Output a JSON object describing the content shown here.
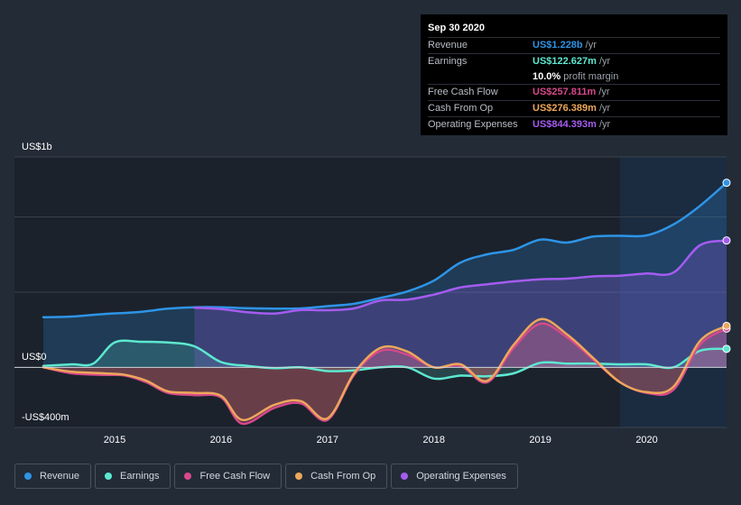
{
  "chart_data": {
    "type": "area",
    "y_axis_labels": [
      "US$1b",
      "US$0",
      "-US$400m"
    ],
    "ylim": [
      -400,
      1400
    ],
    "xlim": [
      2014.33,
      2020.75
    ],
    "x_tick_labels": [
      "2015",
      "2016",
      "2017",
      "2018",
      "2019",
      "2020"
    ],
    "x_ticks": [
      2015,
      2016,
      2017,
      2018,
      2019,
      2020
    ],
    "units": "US$m",
    "highlight_start": 2019.75,
    "series": [
      {
        "name": "Revenue",
        "color": "#2e94e6",
        "x": [
          2014.33,
          2014.6,
          2014.9,
          2015.2,
          2015.5,
          2015.75,
          2016.0,
          2016.25,
          2016.5,
          2016.75,
          2017.0,
          2017.25,
          2017.5,
          2017.75,
          2018.0,
          2018.25,
          2018.5,
          2018.75,
          2019.0,
          2019.25,
          2019.5,
          2019.75,
          2020.0,
          2020.25,
          2020.5,
          2020.75
        ],
        "values": [
          333,
          338,
          355,
          366,
          390,
          400,
          400,
          393,
          391,
          392,
          407,
          423,
          462,
          505,
          577,
          697,
          752,
          782,
          850,
          830,
          870,
          875,
          878,
          950,
          1074,
          1228
        ]
      },
      {
        "name": "Earnings",
        "color": "#5de8d0",
        "x": [
          2014.33,
          2014.6,
          2014.8,
          2015.0,
          2015.25,
          2015.5,
          2015.75,
          2016.0,
          2016.25,
          2016.5,
          2016.75,
          2017.0,
          2017.25,
          2017.5,
          2017.75,
          2018.0,
          2018.25,
          2018.5,
          2018.75,
          2019.0,
          2019.25,
          2019.5,
          2019.75,
          2020.0,
          2020.25,
          2020.5,
          2020.75
        ],
        "values": [
          10,
          20,
          25,
          165,
          170,
          165,
          140,
          35,
          10,
          -5,
          0,
          -25,
          -20,
          0,
          0,
          -75,
          -55,
          -60,
          -40,
          30,
          25,
          25,
          20,
          20,
          0,
          110,
          123
        ]
      },
      {
        "name": "Free Cash Flow",
        "color": "#d6498b",
        "x": [
          2014.33,
          2014.6,
          2014.9,
          2015.1,
          2015.3,
          2015.5,
          2015.75,
          2016.0,
          2016.2,
          2016.5,
          2016.75,
          2017.0,
          2017.25,
          2017.5,
          2017.75,
          2018.0,
          2018.25,
          2018.5,
          2018.75,
          2019.0,
          2019.25,
          2019.5,
          2019.75,
          2020.0,
          2020.25,
          2020.5,
          2020.75
        ],
        "values": [
          0,
          -40,
          -50,
          -55,
          -100,
          -170,
          -185,
          -200,
          -375,
          -270,
          -240,
          -350,
          -50,
          110,
          85,
          0,
          10,
          -100,
          130,
          290,
          200,
          50,
          -100,
          -170,
          -150,
          150,
          258
        ]
      },
      {
        "name": "Cash From Op",
        "color": "#eda75b",
        "x": [
          2014.33,
          2014.6,
          2014.9,
          2015.1,
          2015.3,
          2015.5,
          2015.75,
          2016.0,
          2016.2,
          2016.5,
          2016.75,
          2017.0,
          2017.25,
          2017.5,
          2017.75,
          2018.0,
          2018.25,
          2018.5,
          2018.75,
          2019.0,
          2019.25,
          2019.5,
          2019.75,
          2020.0,
          2020.25,
          2020.5,
          2020.75
        ],
        "values": [
          0,
          -30,
          -40,
          -50,
          -90,
          -160,
          -170,
          -190,
          -350,
          -250,
          -225,
          -340,
          -40,
          130,
          105,
          0,
          20,
          -90,
          150,
          320,
          220,
          60,
          -100,
          -165,
          -130,
          175,
          276
        ]
      },
      {
        "name": "Operating Expenses",
        "color": "#a45cf0",
        "x": [
          2015.75,
          2016.0,
          2016.25,
          2016.5,
          2016.75,
          2017.0,
          2017.25,
          2017.5,
          2017.75,
          2018.0,
          2018.25,
          2018.5,
          2018.75,
          2019.0,
          2019.25,
          2019.5,
          2019.75,
          2020.0,
          2020.25,
          2020.5,
          2020.75
        ],
        "values": [
          397,
          388,
          366,
          358,
          381,
          380,
          392,
          445,
          450,
          484,
          532,
          552,
          572,
          586,
          590,
          605,
          610,
          624,
          630,
          812,
          844
        ]
      }
    ]
  },
  "tooltip": {
    "date": "Sep 30 2020",
    "rows": [
      {
        "label": "Revenue",
        "value": "US$1.228b",
        "unit": "/yr",
        "color": "#2e94e6"
      },
      {
        "label": "Earnings",
        "value": "US$122.627m",
        "unit": "/yr",
        "color": "#5de8d0"
      },
      {
        "label": "",
        "value": "10.0%",
        "unit": "profit margin",
        "color": "#ffffff"
      },
      {
        "label": "Free Cash Flow",
        "value": "US$257.811m",
        "unit": "/yr",
        "color": "#d6498b"
      },
      {
        "label": "Cash From Op",
        "value": "US$276.389m",
        "unit": "/yr",
        "color": "#eda75b"
      },
      {
        "label": "Operating Expenses",
        "value": "US$844.393m",
        "unit": "/yr",
        "color": "#a45cf0"
      }
    ]
  },
  "legend": [
    {
      "label": "Revenue",
      "color": "#2e94e6"
    },
    {
      "label": "Earnings",
      "color": "#5de8d0"
    },
    {
      "label": "Free Cash Flow",
      "color": "#d6498b"
    },
    {
      "label": "Cash From Op",
      "color": "#eda75b"
    },
    {
      "label": "Operating Expenses",
      "color": "#a45cf0"
    }
  ]
}
